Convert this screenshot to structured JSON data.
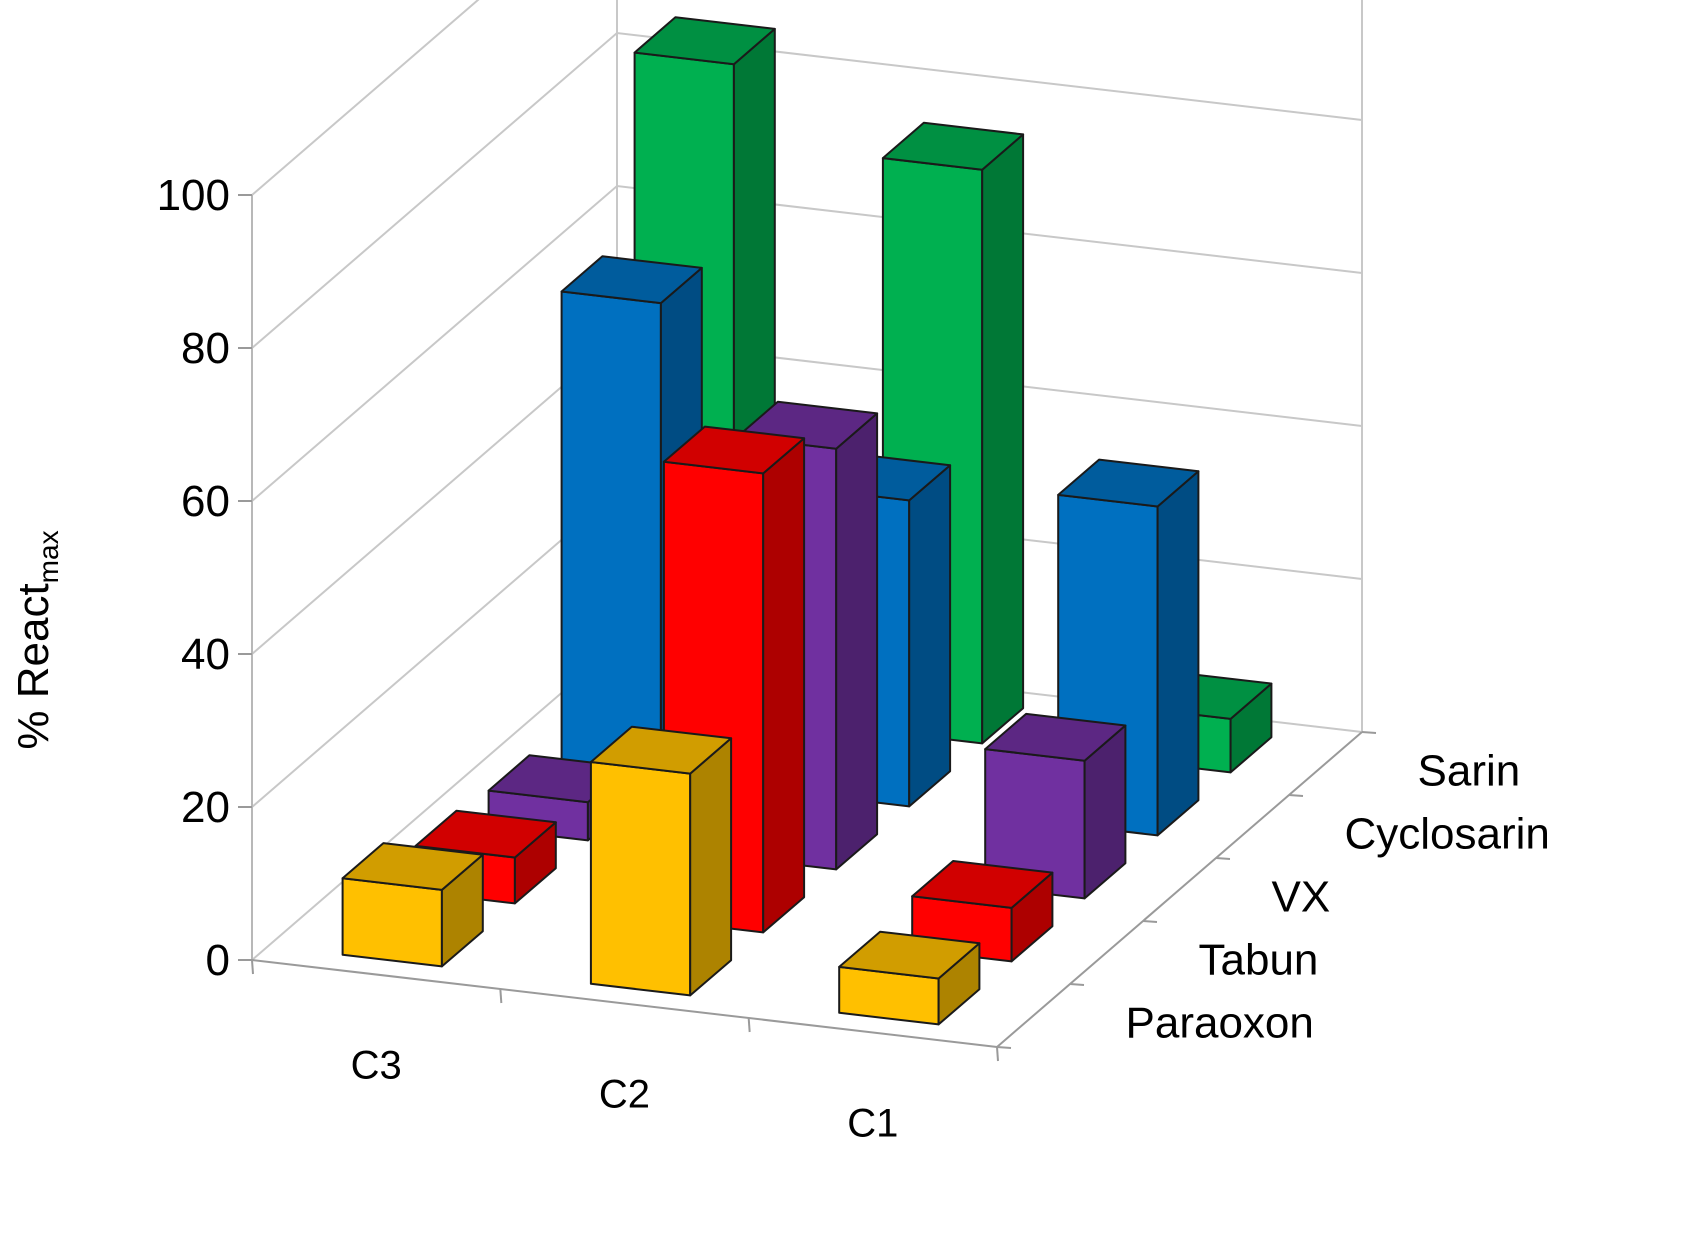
{
  "chart_data": {
    "type": "bar",
    "subtype": "3d-column",
    "title": "",
    "ylabel": "% React",
    "ylabel_subscript": "max",
    "xlabel": "",
    "categories": [
      "C3",
      "C2",
      "C1"
    ],
    "series": [
      {
        "name": "Paraoxon",
        "color": "#FFC000",
        "values": [
          10,
          29,
          6
        ]
      },
      {
        "name": "Tabun",
        "color": "#FF0000",
        "values": [
          6,
          60,
          7
        ]
      },
      {
        "name": "VX",
        "color": "#7030A0",
        "values": [
          5,
          55,
          18
        ]
      },
      {
        "name": "Cyclosarin",
        "color": "#0070C0",
        "values": [
          62,
          40,
          43
        ]
      },
      {
        "name": "Sarin",
        "color": "#00B050",
        "values": [
          85,
          75,
          7
        ]
      }
    ],
    "yticks": [
      "0",
      "20",
      "40",
      "60",
      "80",
      "100"
    ],
    "ylim": [
      0,
      100
    ],
    "grid": true
  }
}
